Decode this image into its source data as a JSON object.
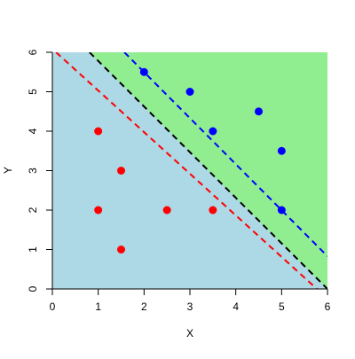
{
  "chart_data": {
    "type": "scatter",
    "xlabel": "X",
    "ylabel": "Y",
    "xlim": [
      0,
      6
    ],
    "ylim": [
      0,
      6
    ],
    "xticks": [
      0,
      1,
      2,
      3,
      4,
      5,
      6
    ],
    "yticks": [
      0,
      1,
      2,
      3,
      4,
      5,
      6
    ],
    "background_color": "#add8e6",
    "fill_color": "#90ee90",
    "fill_above_line": 0,
    "lines": [
      {
        "color": "#000000",
        "dashed": true,
        "x": [
          0.81,
          6
        ],
        "y": [
          6,
          0
        ]
      },
      {
        "color": "#0000ff",
        "dashed": true,
        "x": [
          1.57,
          6
        ],
        "y": [
          6,
          0.83
        ]
      },
      {
        "color": "#ff0000",
        "dashed": true,
        "x": [
          0.08,
          5.77
        ],
        "y": [
          6,
          0
        ]
      }
    ],
    "series": [
      {
        "color": "#ff0000",
        "x": [
          1,
          1.5,
          1,
          1.5,
          2.5,
          3.5
        ],
        "values": [
          4,
          3,
          2,
          1,
          2,
          2
        ]
      },
      {
        "color": "#0000ff",
        "x": [
          2,
          3,
          3.5,
          4.5,
          5,
          5
        ],
        "values": [
          5.5,
          5,
          4,
          4.5,
          3.5,
          2
        ]
      }
    ]
  }
}
